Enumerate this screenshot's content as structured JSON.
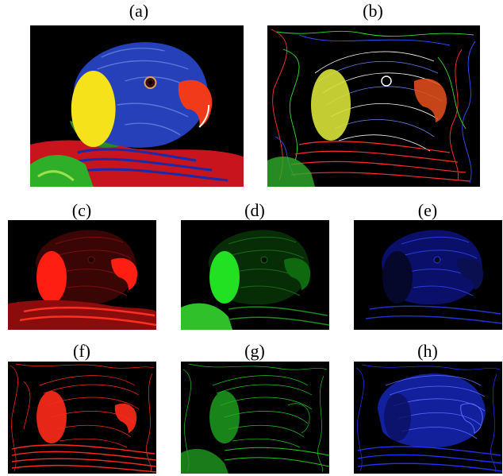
{
  "panels": [
    {
      "id": "a",
      "label": "(a)",
      "style": "photo"
    },
    {
      "id": "b",
      "label": "(b)",
      "style": "lines-rgb"
    },
    {
      "id": "c",
      "label": "(c)",
      "style": "channel-red"
    },
    {
      "id": "d",
      "label": "(d)",
      "style": "channel-green"
    },
    {
      "id": "e",
      "label": "(e)",
      "style": "channel-blue"
    },
    {
      "id": "f",
      "label": "(f)",
      "style": "lines-red"
    },
    {
      "id": "g",
      "label": "(g)",
      "style": "lines-green"
    },
    {
      "id": "h",
      "label": "(h)",
      "style": "lines-blue"
    }
  ],
  "colors": {
    "background": "#000000",
    "red": "#ff2a1a",
    "green": "#22d622",
    "blue": "#1a2bff",
    "yellow": "#f5e21a",
    "beak": "#f03a1a"
  }
}
